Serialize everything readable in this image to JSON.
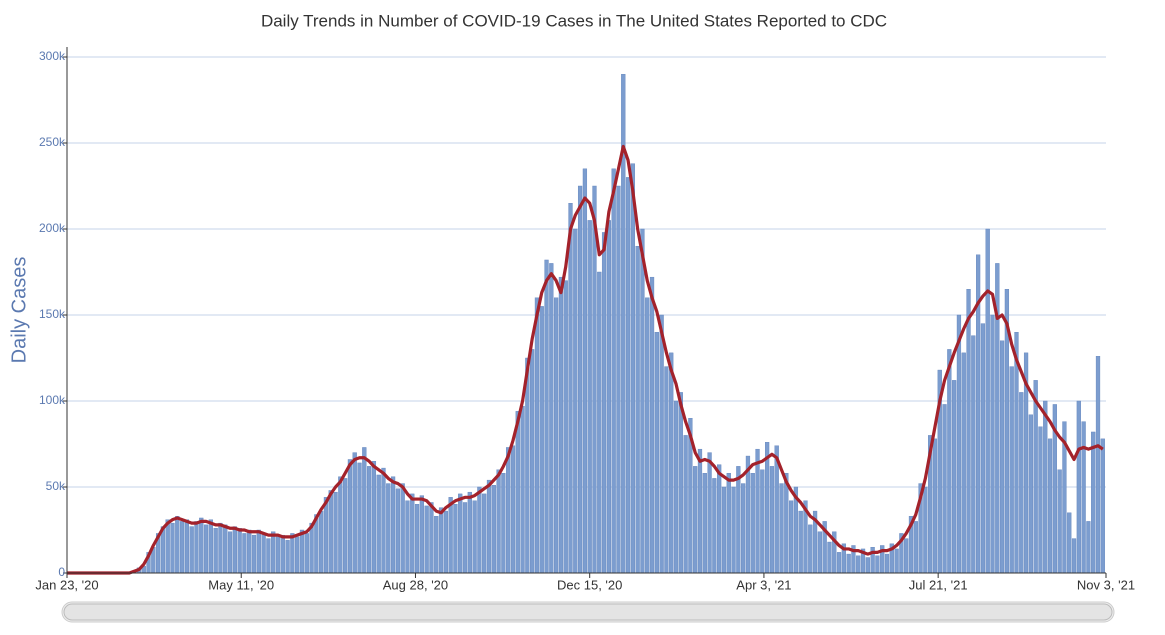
{
  "chart_data": {
    "type": "bar-line",
    "title": "Daily Trends in Number of COVID-19 Cases in The United States Reported to CDC",
    "y_label": "Daily Cases",
    "xlim": [
      0,
      650
    ],
    "xticks": [
      {
        "value": 0,
        "label": "Jan 23, '20"
      },
      {
        "value": 109,
        "label": "May 11, '20"
      },
      {
        "value": 218,
        "label": "Aug 28, '20"
      },
      {
        "value": 327,
        "label": "Dec 15, '20"
      },
      {
        "value": 436,
        "label": "Apr 3, '21"
      },
      {
        "value": 545,
        "label": "Jul 21, '21"
      },
      {
        "value": 650,
        "label": "Nov 3, '21"
      }
    ],
    "ylim": [
      0,
      300000
    ],
    "yticks": [
      {
        "value": 0,
        "label": "0"
      },
      {
        "value": 50000,
        "label": "50k"
      },
      {
        "value": 100000,
        "label": "100k"
      },
      {
        "value": 150000,
        "label": "150k"
      },
      {
        "value": 200000,
        "label": "200k"
      },
      {
        "value": 250000,
        "label": "250k"
      },
      {
        "value": 300000,
        "label": "300k"
      }
    ],
    "grid": true,
    "x": [
      0,
      3,
      6,
      9,
      12,
      15,
      18,
      21,
      24,
      27,
      30,
      33,
      36,
      39,
      42,
      45,
      48,
      51,
      54,
      57,
      60,
      63,
      66,
      69,
      72,
      75,
      78,
      81,
      84,
      87,
      90,
      93,
      96,
      99,
      102,
      105,
      108,
      111,
      114,
      117,
      120,
      123,
      126,
      129,
      132,
      135,
      138,
      141,
      144,
      147,
      150,
      153,
      156,
      159,
      162,
      165,
      168,
      171,
      174,
      177,
      180,
      183,
      186,
      189,
      192,
      195,
      198,
      201,
      204,
      207,
      210,
      213,
      216,
      219,
      222,
      225,
      228,
      231,
      234,
      237,
      240,
      243,
      246,
      249,
      252,
      255,
      258,
      261,
      264,
      267,
      270,
      273,
      276,
      279,
      282,
      285,
      288,
      291,
      294,
      297,
      300,
      303,
      306,
      309,
      312,
      315,
      318,
      321,
      324,
      327,
      330,
      333,
      336,
      339,
      342,
      345,
      348,
      351,
      354,
      357,
      360,
      363,
      366,
      369,
      372,
      375,
      378,
      381,
      384,
      387,
      390,
      393,
      396,
      399,
      402,
      405,
      408,
      411,
      414,
      417,
      420,
      423,
      426,
      429,
      432,
      435,
      438,
      441,
      444,
      447,
      450,
      453,
      456,
      459,
      462,
      465,
      468,
      471,
      474,
      477,
      480,
      483,
      486,
      489,
      492,
      495,
      498,
      501,
      504,
      507,
      510,
      513,
      516,
      519,
      522,
      525,
      528,
      531,
      534,
      537,
      540,
      543,
      546,
      549,
      552,
      555,
      558,
      561,
      564,
      567,
      570,
      573,
      576,
      579,
      582,
      585,
      588,
      591,
      594,
      597,
      600,
      603,
      606,
      609,
      612,
      615,
      618,
      621,
      624,
      627,
      630,
      633,
      636,
      639,
      642,
      645,
      648
    ],
    "series": [
      {
        "kind": "bar",
        "color": "#7c9dcf",
        "values": [
          0,
          0,
          0,
          0,
          0,
          0,
          0,
          0,
          0,
          0,
          0,
          0,
          0,
          0,
          1000,
          3000,
          4000,
          12000,
          15000,
          23000,
          27000,
          31000,
          29000,
          33000,
          30000,
          31000,
          27000,
          30000,
          32000,
          28000,
          31000,
          26000,
          29000,
          28000,
          24000,
          27000,
          26000,
          23000,
          25000,
          22000,
          25000,
          23000,
          20000,
          24000,
          21000,
          22000,
          19000,
          23000,
          21000,
          25000,
          23000,
          29000,
          34000,
          36000,
          44000,
          48000,
          47000,
          56000,
          55000,
          66000,
          70000,
          64000,
          73000,
          62000,
          65000,
          57000,
          61000,
          52000,
          56000,
          49000,
          52000,
          42000,
          46000,
          40000,
          45000,
          39000,
          41000,
          33000,
          38000,
          36000,
          44000,
          40000,
          46000,
          41000,
          47000,
          42000,
          50000,
          46000,
          54000,
          51000,
          60000,
          58000,
          73000,
          74000,
          94000,
          97000,
          125000,
          130000,
          160000,
          155000,
          182000,
          180000,
          160000,
          172000,
          170000,
          215000,
          200000,
          225000,
          235000,
          205000,
          225000,
          175000,
          198000,
          205000,
          235000,
          225000,
          290000,
          230000,
          238000,
          190000,
          200000,
          160000,
          172000,
          140000,
          150000,
          120000,
          128000,
          100000,
          105000,
          80000,
          90000,
          62000,
          72000,
          58000,
          70000,
          55000,
          63000,
          50000,
          58000,
          50000,
          62000,
          52000,
          68000,
          58000,
          72000,
          60000,
          76000,
          62000,
          74000,
          52000,
          58000,
          42000,
          50000,
          36000,
          42000,
          28000,
          36000,
          24000,
          30000,
          18000,
          24000,
          12000,
          17000,
          11000,
          16000,
          10000,
          14000,
          9000,
          15000,
          10000,
          16000,
          11000,
          17000,
          14000,
          23000,
          20000,
          33000,
          30000,
          52000,
          50000,
          80000,
          78000,
          118000,
          98000,
          130000,
          112000,
          150000,
          128000,
          165000,
          138000,
          185000,
          145000,
          200000,
          150000,
          180000,
          135000,
          165000,
          120000,
          140000,
          105000,
          128000,
          92000,
          112000,
          85000,
          100000,
          78000,
          98000,
          60000,
          88000,
          35000,
          20000,
          100000,
          88000,
          30000,
          82000,
          126000,
          78000
        ]
      },
      {
        "kind": "line",
        "color": "#a3222b",
        "values": [
          0,
          0,
          0,
          0,
          0,
          0,
          0,
          0,
          0,
          0,
          0,
          0,
          0,
          0,
          1000,
          2000,
          5000,
          10000,
          16000,
          21000,
          26000,
          29000,
          31000,
          32000,
          31000,
          30000,
          29000,
          29000,
          30000,
          30000,
          29000,
          28000,
          28000,
          27000,
          26000,
          26000,
          25000,
          25000,
          24000,
          24000,
          24000,
          23000,
          22000,
          22000,
          22000,
          21000,
          21000,
          21000,
          22000,
          23000,
          24000,
          27000,
          32000,
          37000,
          41000,
          46000,
          50000,
          53000,
          58000,
          63000,
          66000,
          67000,
          67000,
          65000,
          62000,
          60000,
          58000,
          55000,
          53000,
          52000,
          50000,
          46000,
          43000,
          43000,
          43000,
          42000,
          39000,
          36000,
          35000,
          38000,
          40000,
          42000,
          43000,
          44000,
          44000,
          45000,
          47000,
          49000,
          51000,
          54000,
          57000,
          62000,
          68000,
          77000,
          88000,
          100000,
          118000,
          136000,
          150000,
          163000,
          170000,
          174000,
          170000,
          163000,
          178000,
          200000,
          208000,
          213000,
          218000,
          215000,
          205000,
          185000,
          188000,
          210000,
          222000,
          235000,
          248000,
          240000,
          222000,
          200000,
          185000,
          170000,
          160000,
          152000,
          140000,
          128000,
          118000,
          110000,
          98000,
          88000,
          80000,
          70000,
          65000,
          66000,
          65000,
          62000,
          58000,
          56000,
          54000,
          54000,
          55000,
          57000,
          60000,
          63000,
          64000,
          65000,
          67000,
          69000,
          67000,
          60000,
          53000,
          48000,
          44000,
          41000,
          37000,
          33000,
          31000,
          28000,
          25000,
          22000,
          19000,
          16000,
          14000,
          14000,
          13000,
          13000,
          12000,
          11000,
          12000,
          12000,
          13000,
          13000,
          14000,
          16000,
          19000,
          23000,
          28000,
          34000,
          44000,
          55000,
          70000,
          85000,
          100000,
          112000,
          120000,
          128000,
          135000,
          142000,
          148000,
          152000,
          157000,
          161000,
          164000,
          162000,
          148000,
          150000,
          145000,
          133000,
          124000,
          117000,
          110000,
          105000,
          100000,
          96000,
          92000,
          88000,
          83000,
          79000,
          76000,
          71000,
          66000,
          72000,
          73000,
          72000,
          73000,
          74000,
          72000
        ]
      }
    ]
  }
}
